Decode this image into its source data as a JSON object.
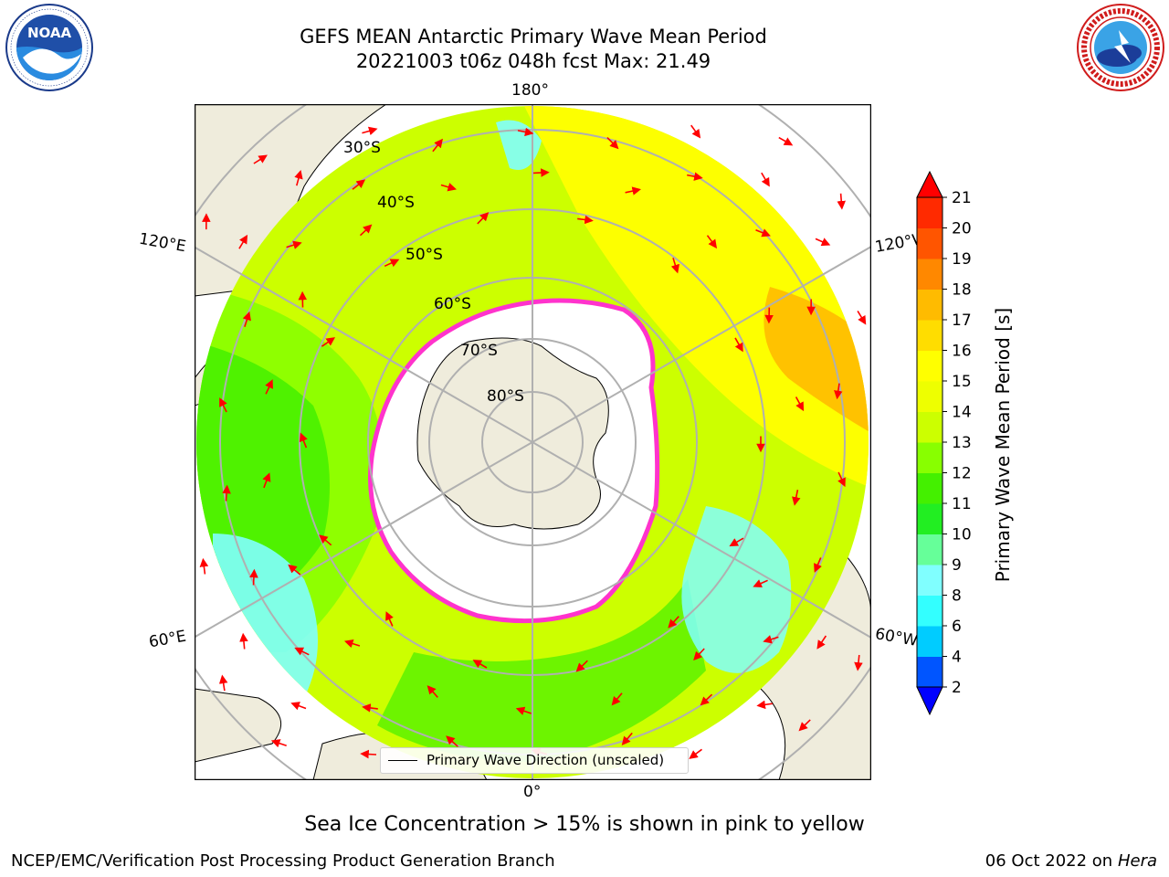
{
  "header": {
    "title_line1": "GEFS MEAN Antarctic Primary Wave Mean Period",
    "title_line2": "20221003 t06z 048h fcst   Max: 21.49"
  },
  "logos": {
    "left": {
      "name": "NOAA",
      "text": "NOAA",
      "ring_text": "NATIONAL OCEANIC AND ATMOSPHERIC ADMINISTRATION · U.S. DEPARTMENT OF COMMERCE"
    },
    "right": {
      "name": "National Weather Service",
      "ring_text": "NATIONAL WEATHER SERVICE"
    }
  },
  "map": {
    "projection": "south-polar-stereographic",
    "longitude_labels": {
      "top": "180°",
      "bottom": "0°",
      "left_upper": "120°E",
      "left_lower": "60°E",
      "right_upper": "120°W",
      "right_lower": "60°W"
    },
    "latitude_labels": [
      "30°S",
      "40°S",
      "50°S",
      "60°S",
      "70°S",
      "80°S"
    ],
    "legend": {
      "label": "Primary Wave Direction (unscaled)"
    }
  },
  "colorbar": {
    "label": "Primary Wave Mean Period [s]",
    "ticks": [
      "2",
      "4",
      "6",
      "8",
      "9",
      "10",
      "11",
      "12",
      "13",
      "14",
      "15",
      "16",
      "17",
      "18",
      "19",
      "20",
      "21"
    ],
    "colors": [
      "#0055ff",
      "#00ccff",
      "#33ffff",
      "#80ffff",
      "#66ff99",
      "#22ee22",
      "#44f000",
      "#88ff00",
      "#ccff00",
      "#eeff00",
      "#ffff00",
      "#ffdd00",
      "#ffbb00",
      "#ff8800",
      "#ff5500",
      "#ff2a00"
    ],
    "under_color": "#0000ff",
    "over_color": "#ff0000"
  },
  "footer": {
    "caption": "Sea Ice Concentration > 15% is shown in pink to yellow",
    "left": "NCEP/EMC/Verification Post Processing Product Generation Branch",
    "right_date": "06 Oct 2022 on",
    "right_host": "Hera"
  }
}
